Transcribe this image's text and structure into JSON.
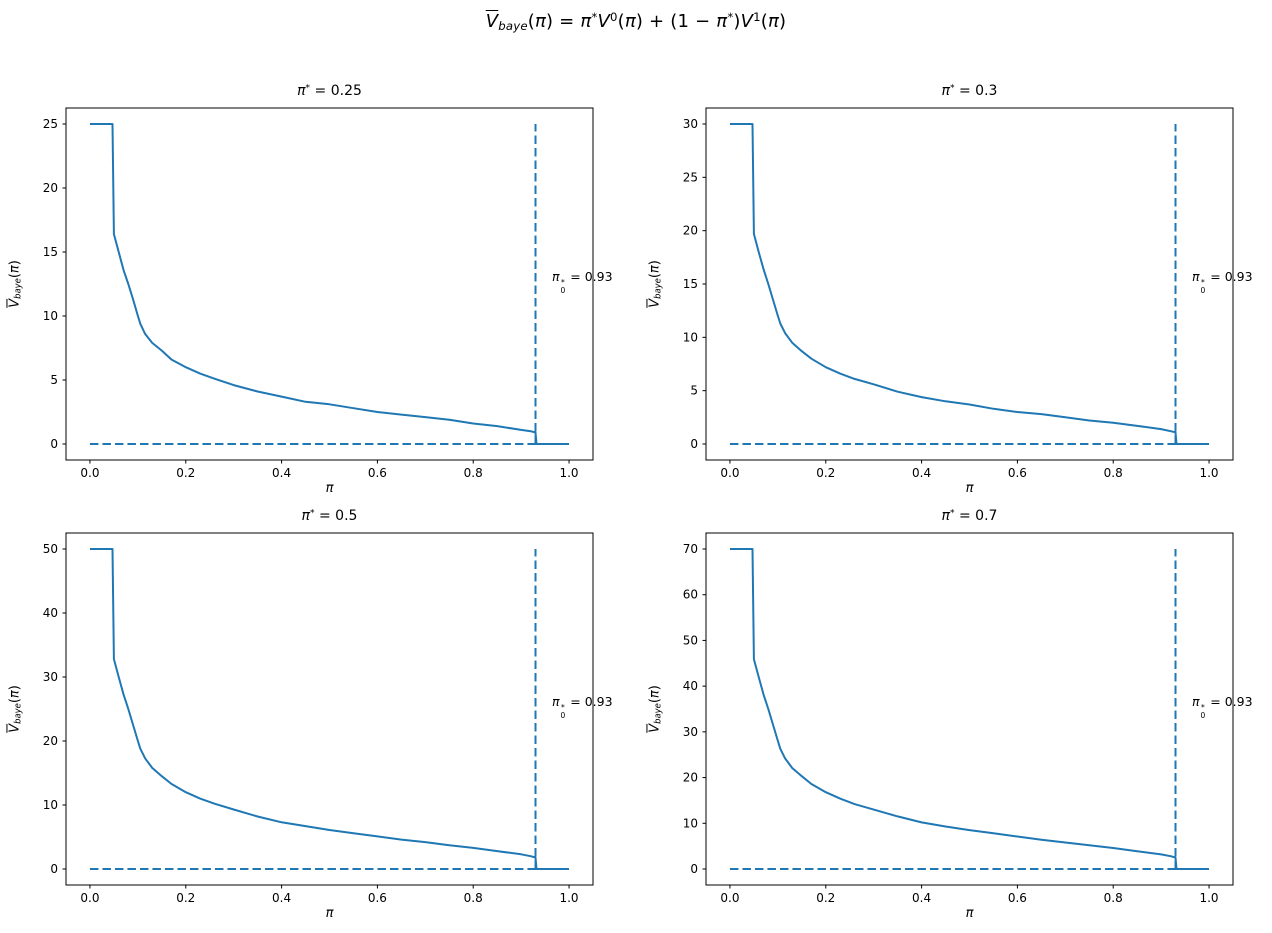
{
  "suptitle_parts": [
    {
      "t": "V",
      "c": [
        "i",
        "ovl"
      ]
    },
    {
      "t": "baye",
      "c": [
        "sub",
        "i"
      ]
    },
    {
      "t": "(",
      "c": []
    },
    {
      "t": "π",
      "c": [
        "i"
      ]
    },
    {
      "t": ") = ",
      "c": []
    },
    {
      "t": "π",
      "c": [
        "i"
      ]
    },
    {
      "t": "*",
      "c": [
        "sup"
      ]
    },
    {
      "t": "V",
      "c": [
        "i"
      ]
    },
    {
      "t": "0",
      "c": [
        "sup"
      ]
    },
    {
      "t": "(",
      "c": []
    },
    {
      "t": "π",
      "c": [
        "i"
      ]
    },
    {
      "t": ") + (1 − ",
      "c": []
    },
    {
      "t": "π",
      "c": [
        "i"
      ]
    },
    {
      "t": "*",
      "c": [
        "sup"
      ]
    },
    {
      "t": ")",
      "c": []
    },
    {
      "t": "V",
      "c": [
        "i"
      ]
    },
    {
      "t": "1",
      "c": [
        "sup"
      ]
    },
    {
      "t": "(",
      "c": []
    },
    {
      "t": "π",
      "c": [
        "i"
      ]
    },
    {
      "t": ")",
      "c": []
    }
  ],
  "shared": {
    "xlabel": "π",
    "ylabel_parts": [
      {
        "t": "V",
        "c": [
          "i",
          "ovl"
        ]
      },
      {
        "t": "baye",
        "c": [
          "sub",
          "i"
        ]
      },
      {
        "t": "(",
        "c": []
      },
      {
        "t": "π",
        "c": [
          "i"
        ]
      },
      {
        "t": ")",
        "c": []
      }
    ],
    "annotation_parts": [
      {
        "t": "π",
        "c": [
          "i"
        ]
      },
      {
        "stack": true,
        "sup": "*",
        "sub": "0"
      },
      {
        "t": " = 0.93",
        "c": []
      }
    ],
    "annotation_text": "π₀* = 0.93",
    "line_color": "#1f77b4",
    "axis_color": "#000000"
  },
  "chart_data": [
    {
      "type": "line",
      "title": "π* = 0.25",
      "title_parts": [
        {
          "t": "π",
          "c": [
            "i"
          ]
        },
        {
          "t": "*",
          "c": [
            "sup"
          ]
        },
        {
          "t": " = 0.25",
          "c": []
        }
      ],
      "xlabel": "π",
      "ylabel": "V̄_baye(π)",
      "vmax": 25,
      "xlim": [
        -0.05,
        1.05
      ],
      "ylim": [
        -1.25,
        26.25
      ],
      "xticks": [
        0,
        0.2,
        0.4,
        0.6,
        0.8,
        1.0
      ],
      "xtick_labels": [
        "0.0",
        "0.2",
        "0.4",
        "0.6",
        "0.8",
        "1.0"
      ],
      "yticks": [
        0,
        5,
        10,
        15,
        20,
        25
      ],
      "hline_y": 0,
      "vline_x": 0.93,
      "annotation": "π₀* = 0.93",
      "series": [
        {
          "name": "V_baye",
          "x": [
            0,
            0.047,
            0.05,
            0.06,
            0.07,
            0.08,
            0.09,
            0.1,
            0.105,
            0.115,
            0.13,
            0.15,
            0.17,
            0.2,
            0.23,
            0.26,
            0.3,
            0.35,
            0.4,
            0.45,
            0.5,
            0.55,
            0.6,
            0.65,
            0.7,
            0.75,
            0.8,
            0.85,
            0.9,
            0.92,
            0.93,
            0.932,
            1
          ],
          "y": [
            25,
            25,
            16.4,
            15,
            13.6,
            12.5,
            11.3,
            10,
            9.4,
            8.6,
            7.9,
            7.3,
            6.6,
            6,
            5.5,
            5.1,
            4.6,
            4.1,
            3.7,
            3.3,
            3.1,
            2.8,
            2.5,
            2.3,
            2.1,
            1.9,
            1.6,
            1.4,
            1.1,
            1,
            0.9,
            0,
            0
          ]
        }
      ]
    },
    {
      "type": "line",
      "title": "π* = 0.3",
      "title_parts": [
        {
          "t": "π",
          "c": [
            "i"
          ]
        },
        {
          "t": "*",
          "c": [
            "sup"
          ]
        },
        {
          "t": " = 0.3",
          "c": []
        }
      ],
      "xlabel": "π",
      "ylabel": "V̄_baye(π)",
      "vmax": 30,
      "xlim": [
        -0.05,
        1.05
      ],
      "ylim": [
        -1.5,
        31.5
      ],
      "xticks": [
        0,
        0.2,
        0.4,
        0.6,
        0.8,
        1.0
      ],
      "xtick_labels": [
        "0.0",
        "0.2",
        "0.4",
        "0.6",
        "0.8",
        "1.0"
      ],
      "yticks": [
        0,
        5,
        10,
        15,
        20,
        25,
        30
      ],
      "hline_y": 0,
      "vline_x": 0.93,
      "annotation": "π₀* = 0.93",
      "series": [
        {
          "name": "V_baye",
          "x": [
            0,
            0.047,
            0.05,
            0.06,
            0.07,
            0.08,
            0.09,
            0.1,
            0.105,
            0.115,
            0.13,
            0.15,
            0.17,
            0.2,
            0.23,
            0.26,
            0.3,
            0.35,
            0.4,
            0.45,
            0.5,
            0.55,
            0.6,
            0.65,
            0.7,
            0.75,
            0.8,
            0.85,
            0.9,
            0.92,
            0.93,
            0.932,
            1
          ],
          "y": [
            30,
            30,
            19.7,
            18,
            16.4,
            15,
            13.5,
            12,
            11.3,
            10.4,
            9.5,
            8.7,
            8,
            7.2,
            6.6,
            6.1,
            5.6,
            4.9,
            4.4,
            4,
            3.7,
            3.3,
            3,
            2.8,
            2.5,
            2.2,
            2,
            1.7,
            1.4,
            1.2,
            1.1,
            0,
            0
          ]
        }
      ]
    },
    {
      "type": "line",
      "title": "π* = 0.5",
      "title_parts": [
        {
          "t": "π",
          "c": [
            "i"
          ]
        },
        {
          "t": "*",
          "c": [
            "sup"
          ]
        },
        {
          "t": " = 0.5",
          "c": []
        }
      ],
      "xlabel": "π",
      "ylabel": "V̄_baye(π)",
      "vmax": 50,
      "xlim": [
        -0.05,
        1.05
      ],
      "ylim": [
        -2.5,
        52.5
      ],
      "xticks": [
        0,
        0.2,
        0.4,
        0.6,
        0.8,
        1.0
      ],
      "xtick_labels": [
        "0.0",
        "0.2",
        "0.4",
        "0.6",
        "0.8",
        "1.0"
      ],
      "yticks": [
        0,
        10,
        20,
        30,
        40,
        50
      ],
      "hline_y": 0,
      "vline_x": 0.93,
      "annotation": "π₀* = 0.93",
      "series": [
        {
          "name": "V_baye",
          "x": [
            0,
            0.047,
            0.05,
            0.06,
            0.07,
            0.08,
            0.09,
            0.1,
            0.105,
            0.115,
            0.13,
            0.15,
            0.17,
            0.2,
            0.23,
            0.26,
            0.3,
            0.35,
            0.4,
            0.45,
            0.5,
            0.55,
            0.6,
            0.65,
            0.7,
            0.75,
            0.8,
            0.85,
            0.9,
            0.92,
            0.93,
            0.932,
            1
          ],
          "y": [
            50,
            50,
            32.8,
            30,
            27.3,
            25,
            22.5,
            20,
            18.8,
            17.3,
            15.8,
            14.5,
            13.3,
            12,
            11,
            10.2,
            9.3,
            8.2,
            7.3,
            6.7,
            6.1,
            5.6,
            5.1,
            4.6,
            4.2,
            3.7,
            3.3,
            2.8,
            2.3,
            2,
            1.8,
            0,
            0
          ]
        }
      ]
    },
    {
      "type": "line",
      "title": "π* = 0.7",
      "title_parts": [
        {
          "t": "π",
          "c": [
            "i"
          ]
        },
        {
          "t": "*",
          "c": [
            "sup"
          ]
        },
        {
          "t": " = 0.7",
          "c": []
        }
      ],
      "xlabel": "π",
      "ylabel": "V̄_baye(π)",
      "vmax": 70,
      "xlim": [
        -0.05,
        1.05
      ],
      "ylim": [
        -3.5,
        73.5
      ],
      "xticks": [
        0,
        0.2,
        0.4,
        0.6,
        0.8,
        1.0
      ],
      "xtick_labels": [
        "0.0",
        "0.2",
        "0.4",
        "0.6",
        "0.8",
        "1.0"
      ],
      "yticks": [
        0,
        10,
        20,
        30,
        40,
        50,
        60,
        70
      ],
      "hline_y": 0,
      "vline_x": 0.93,
      "annotation": "π₀* = 0.93",
      "series": [
        {
          "name": "V_baye",
          "x": [
            0,
            0.047,
            0.05,
            0.06,
            0.07,
            0.08,
            0.09,
            0.1,
            0.105,
            0.115,
            0.13,
            0.15,
            0.17,
            0.2,
            0.23,
            0.26,
            0.3,
            0.35,
            0.4,
            0.45,
            0.5,
            0.55,
            0.6,
            0.65,
            0.7,
            0.75,
            0.8,
            0.85,
            0.9,
            0.92,
            0.93,
            0.932,
            1
          ],
          "y": [
            70,
            70,
            45.9,
            42,
            38.2,
            35,
            31.5,
            28,
            26.3,
            24.2,
            22.1,
            20.3,
            18.6,
            16.8,
            15.4,
            14.2,
            13,
            11.5,
            10.2,
            9.3,
            8.5,
            7.8,
            7.1,
            6.4,
            5.8,
            5.2,
            4.6,
            3.9,
            3.2,
            2.8,
            2.5,
            0,
            0
          ]
        }
      ]
    }
  ]
}
